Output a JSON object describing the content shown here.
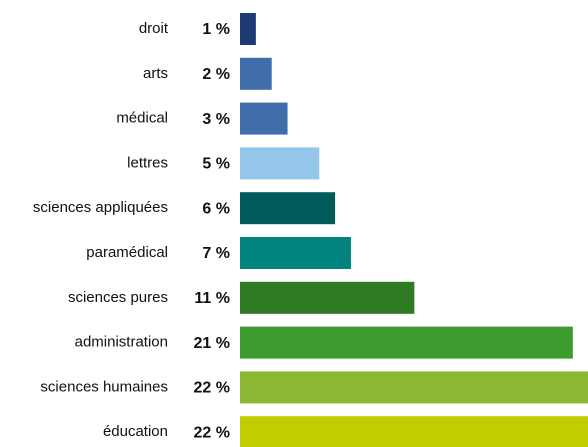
{
  "chart_data": {
    "type": "bar",
    "orientation": "horizontal",
    "categories": [
      "droit",
      "arts",
      "médical",
      "lettres",
      "sciences appliquées",
      "paramédical",
      "sciences pures",
      "administration",
      "sciences humaines",
      "éducation"
    ],
    "values": [
      1,
      2,
      3,
      5,
      6,
      7,
      11,
      21,
      22,
      22
    ],
    "value_labels": [
      "1 %",
      "2 %",
      "3 %",
      "5 %",
      "6 %",
      "7 %",
      "11 %",
      "21 %",
      "22 %",
      "22 %"
    ],
    "colors": [
      "#1d3a72",
      "#3f6eaa",
      "#3f6eaa",
      "#93c6e8",
      "#005b5a",
      "#00837f",
      "#2e7b24",
      "#3e9b2f",
      "#8bb832",
      "#c3cc00"
    ]
  }
}
